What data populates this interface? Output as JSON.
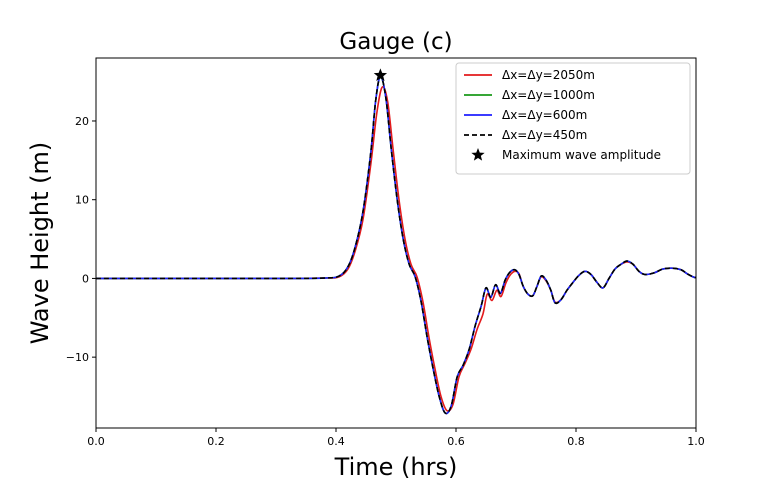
{
  "chart_data": {
    "type": "line",
    "title": "Gauge (c)",
    "xlabel": "Time (hrs)",
    "ylabel": "Wave Height (m)",
    "xlim": [
      0,
      1
    ],
    "ylim": [
      -19,
      28
    ],
    "xticks": [
      0.0,
      0.2,
      0.4,
      0.6,
      0.8,
      1.0
    ],
    "xtick_labels": [
      "0.0",
      "0.2",
      "0.4",
      "0.6",
      "0.8",
      "1.0"
    ],
    "yticks": [
      -10,
      0,
      10,
      20
    ],
    "ytick_labels": [
      "−10",
      "0",
      "10",
      "20"
    ],
    "grid": false,
    "legend_position": "top-right",
    "series": [
      {
        "name": "Δx=Δy=2050m",
        "color": "#e31a1c",
        "dash": "solid",
        "x": [
          0.0,
          0.1,
          0.2,
          0.3,
          0.38,
          0.405,
          0.42,
          0.432,
          0.445,
          0.458,
          0.468,
          0.477,
          0.486,
          0.495,
          0.505,
          0.515,
          0.525,
          0.535,
          0.545,
          0.555,
          0.565,
          0.575,
          0.585,
          0.595,
          0.605,
          0.615,
          0.625,
          0.635,
          0.645,
          0.652,
          0.66,
          0.668,
          0.675,
          0.683,
          0.69,
          0.698,
          0.705,
          0.712,
          0.72,
          0.728,
          0.735,
          0.742,
          0.75,
          0.758,
          0.765,
          0.775,
          0.785,
          0.795,
          0.805,
          0.815,
          0.825,
          0.835,
          0.845,
          0.855,
          0.865,
          0.875,
          0.885,
          0.895,
          0.905,
          0.915,
          0.93,
          0.945,
          0.96,
          0.975,
          0.985,
          0.995,
          1.0
        ],
        "y": [
          0,
          0,
          0,
          0,
          0.05,
          0.2,
          1.2,
          3.5,
          7.5,
          14.5,
          21.0,
          24.3,
          22.5,
          16.5,
          10.0,
          5.0,
          1.8,
          0.2,
          -3.0,
          -7.5,
          -11.5,
          -15.0,
          -16.8,
          -16.0,
          -12.5,
          -10.8,
          -9.0,
          -6.5,
          -4.5,
          -2.0,
          -2.8,
          -1.5,
          -2.3,
          -0.6,
          0.4,
          0.9,
          0.6,
          -1.0,
          -2.0,
          -2.2,
          -1.0,
          0.2,
          -0.3,
          -1.5,
          -3.0,
          -2.7,
          -1.5,
          -0.5,
          0.4,
          0.9,
          0.5,
          -0.5,
          -1.2,
          0.0,
          1.2,
          1.8,
          2.1,
          1.8,
          0.9,
          0.5,
          0.7,
          1.2,
          1.3,
          1.1,
          0.6,
          0.2,
          0.1
        ]
      },
      {
        "name": "Δx=Δy=1000m",
        "color": "#1a9a1a",
        "dash": "solid",
        "x": [
          0.0,
          0.1,
          0.2,
          0.3,
          0.38,
          0.405,
          0.42,
          0.432,
          0.445,
          0.458,
          0.466,
          0.474,
          0.483,
          0.492,
          0.502,
          0.512,
          0.522,
          0.532,
          0.542,
          0.552,
          0.562,
          0.572,
          0.582,
          0.592,
          0.602,
          0.612,
          0.622,
          0.632,
          0.642,
          0.65,
          0.658,
          0.666,
          0.674,
          0.682,
          0.69,
          0.698,
          0.705,
          0.712,
          0.72,
          0.728,
          0.735,
          0.742,
          0.75,
          0.758,
          0.765,
          0.775,
          0.785,
          0.795,
          0.805,
          0.815,
          0.825,
          0.835,
          0.845,
          0.855,
          0.865,
          0.875,
          0.885,
          0.895,
          0.905,
          0.915,
          0.93,
          0.945,
          0.96,
          0.975,
          0.985,
          0.995,
          1.0
        ],
        "y": [
          0,
          0,
          0,
          0,
          0.05,
          0.3,
          1.5,
          4.0,
          8.5,
          16.0,
          22.5,
          25.6,
          23.0,
          16.5,
          10.0,
          5.0,
          1.8,
          0.2,
          -3.0,
          -7.5,
          -11.5,
          -15.0,
          -17.1,
          -16.2,
          -12.5,
          -11.0,
          -9.0,
          -6.0,
          -3.5,
          -1.2,
          -2.4,
          -0.8,
          -1.9,
          -0.2,
          0.8,
          1.1,
          0.5,
          -1.0,
          -2.0,
          -2.2,
          -1.0,
          0.3,
          -0.2,
          -1.5,
          -3.1,
          -2.7,
          -1.5,
          -0.5,
          0.4,
          0.9,
          0.5,
          -0.5,
          -1.2,
          0.0,
          1.2,
          1.8,
          2.2,
          1.8,
          0.9,
          0.5,
          0.7,
          1.2,
          1.3,
          1.1,
          0.6,
          0.2,
          0.1
        ]
      },
      {
        "name": "Δx=Δy=600m",
        "color": "#1f1fff",
        "dash": "solid",
        "x": [
          0.0,
          0.1,
          0.2,
          0.3,
          0.38,
          0.405,
          0.42,
          0.432,
          0.445,
          0.458,
          0.466,
          0.474,
          0.483,
          0.492,
          0.502,
          0.512,
          0.522,
          0.532,
          0.542,
          0.552,
          0.562,
          0.572,
          0.582,
          0.592,
          0.602,
          0.612,
          0.622,
          0.632,
          0.642,
          0.65,
          0.658,
          0.666,
          0.674,
          0.682,
          0.69,
          0.698,
          0.705,
          0.712,
          0.72,
          0.728,
          0.735,
          0.742,
          0.75,
          0.758,
          0.765,
          0.775,
          0.785,
          0.795,
          0.805,
          0.815,
          0.825,
          0.835,
          0.845,
          0.855,
          0.865,
          0.875,
          0.885,
          0.895,
          0.905,
          0.915,
          0.93,
          0.945,
          0.96,
          0.975,
          0.985,
          0.995,
          1.0
        ],
        "y": [
          0,
          0,
          0,
          0,
          0.05,
          0.3,
          1.5,
          4.0,
          8.5,
          16.0,
          22.5,
          25.7,
          23.0,
          16.5,
          10.0,
          5.0,
          1.8,
          0.2,
          -3.0,
          -7.5,
          -11.5,
          -15.0,
          -17.1,
          -16.2,
          -12.5,
          -11.0,
          -9.0,
          -6.0,
          -3.5,
          -1.2,
          -2.4,
          -0.8,
          -1.9,
          -0.2,
          0.8,
          1.1,
          0.5,
          -1.0,
          -2.0,
          -2.2,
          -1.0,
          0.3,
          -0.2,
          -1.5,
          -3.1,
          -2.7,
          -1.5,
          -0.5,
          0.4,
          0.9,
          0.5,
          -0.5,
          -1.2,
          0.0,
          1.2,
          1.8,
          2.2,
          1.8,
          0.9,
          0.5,
          0.7,
          1.2,
          1.3,
          1.1,
          0.6,
          0.2,
          0.1
        ]
      },
      {
        "name": "Δx=Δy=450m",
        "color": "#000000",
        "dash": "dashed",
        "x": [
          0.0,
          0.1,
          0.2,
          0.3,
          0.38,
          0.405,
          0.42,
          0.432,
          0.445,
          0.458,
          0.466,
          0.474,
          0.483,
          0.492,
          0.502,
          0.512,
          0.522,
          0.532,
          0.542,
          0.552,
          0.562,
          0.572,
          0.582,
          0.592,
          0.602,
          0.612,
          0.622,
          0.632,
          0.642,
          0.65,
          0.658,
          0.666,
          0.674,
          0.682,
          0.69,
          0.698,
          0.705,
          0.712,
          0.72,
          0.728,
          0.735,
          0.742,
          0.75,
          0.758,
          0.765,
          0.775,
          0.785,
          0.795,
          0.805,
          0.815,
          0.825,
          0.835,
          0.845,
          0.855,
          0.865,
          0.875,
          0.885,
          0.895,
          0.905,
          0.915,
          0.93,
          0.945,
          0.96,
          0.975,
          0.985,
          0.995,
          1.0
        ],
        "y": [
          0,
          0,
          0,
          0,
          0.05,
          0.3,
          1.5,
          4.0,
          8.5,
          16.0,
          22.5,
          25.7,
          23.0,
          16.5,
          10.0,
          5.0,
          1.8,
          0.2,
          -3.0,
          -7.5,
          -11.5,
          -15.0,
          -17.1,
          -16.2,
          -12.5,
          -11.0,
          -9.0,
          -6.0,
          -3.5,
          -1.2,
          -2.4,
          -0.8,
          -1.9,
          -0.2,
          0.8,
          1.1,
          0.5,
          -1.0,
          -2.0,
          -2.2,
          -1.0,
          0.3,
          -0.2,
          -1.5,
          -3.1,
          -2.7,
          -1.5,
          -0.5,
          0.4,
          0.9,
          0.5,
          -0.5,
          -1.2,
          0.0,
          1.2,
          1.8,
          2.2,
          1.8,
          0.9,
          0.5,
          0.7,
          1.2,
          1.3,
          1.1,
          0.6,
          0.2,
          0.1
        ]
      }
    ],
    "marker": {
      "name": "Maximum wave amplitude",
      "symbol": "star",
      "color": "#000000",
      "x": 0.474,
      "y": 25.8
    }
  }
}
